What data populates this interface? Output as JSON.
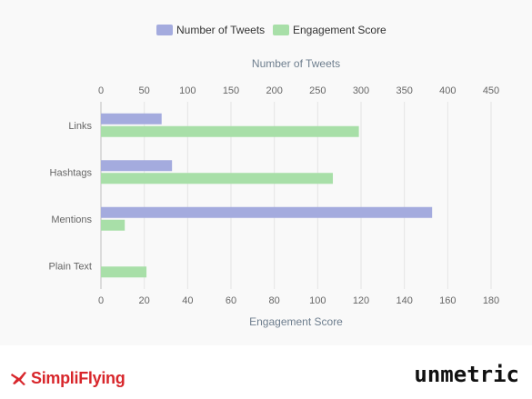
{
  "chart_data": {
    "type": "bar",
    "orientation": "horizontal",
    "categories": [
      "Links",
      "Hashtags",
      "Mentions",
      "Plain Text"
    ],
    "series": [
      {
        "name": "Number of Tweets",
        "values": [
          70,
          82,
          382,
          0
        ],
        "axis": "top",
        "color": "#a4abde"
      },
      {
        "name": "Engagement Score",
        "values": [
          119,
          107,
          11,
          21
        ],
        "axis": "bottom",
        "color": "#a8dfa8"
      }
    ],
    "top_axis": {
      "label": "Number of Tweets",
      "range": [
        0,
        450
      ],
      "ticks": [
        "0",
        "50",
        "100",
        "150",
        "200",
        "250",
        "300",
        "350",
        "400",
        "450"
      ]
    },
    "bottom_axis": {
      "label": "Engagement Score",
      "range": [
        0,
        180
      ],
      "ticks": [
        "0",
        "20",
        "40",
        "60",
        "80",
        "100",
        "120",
        "140",
        "160",
        "180"
      ]
    },
    "legend_position": "top-center",
    "grid": true
  },
  "footer": {
    "left_brand": "SimpliFlying",
    "right_brand": "unmetric"
  },
  "icons": {
    "left_logo": "airplane-logo-icon"
  }
}
